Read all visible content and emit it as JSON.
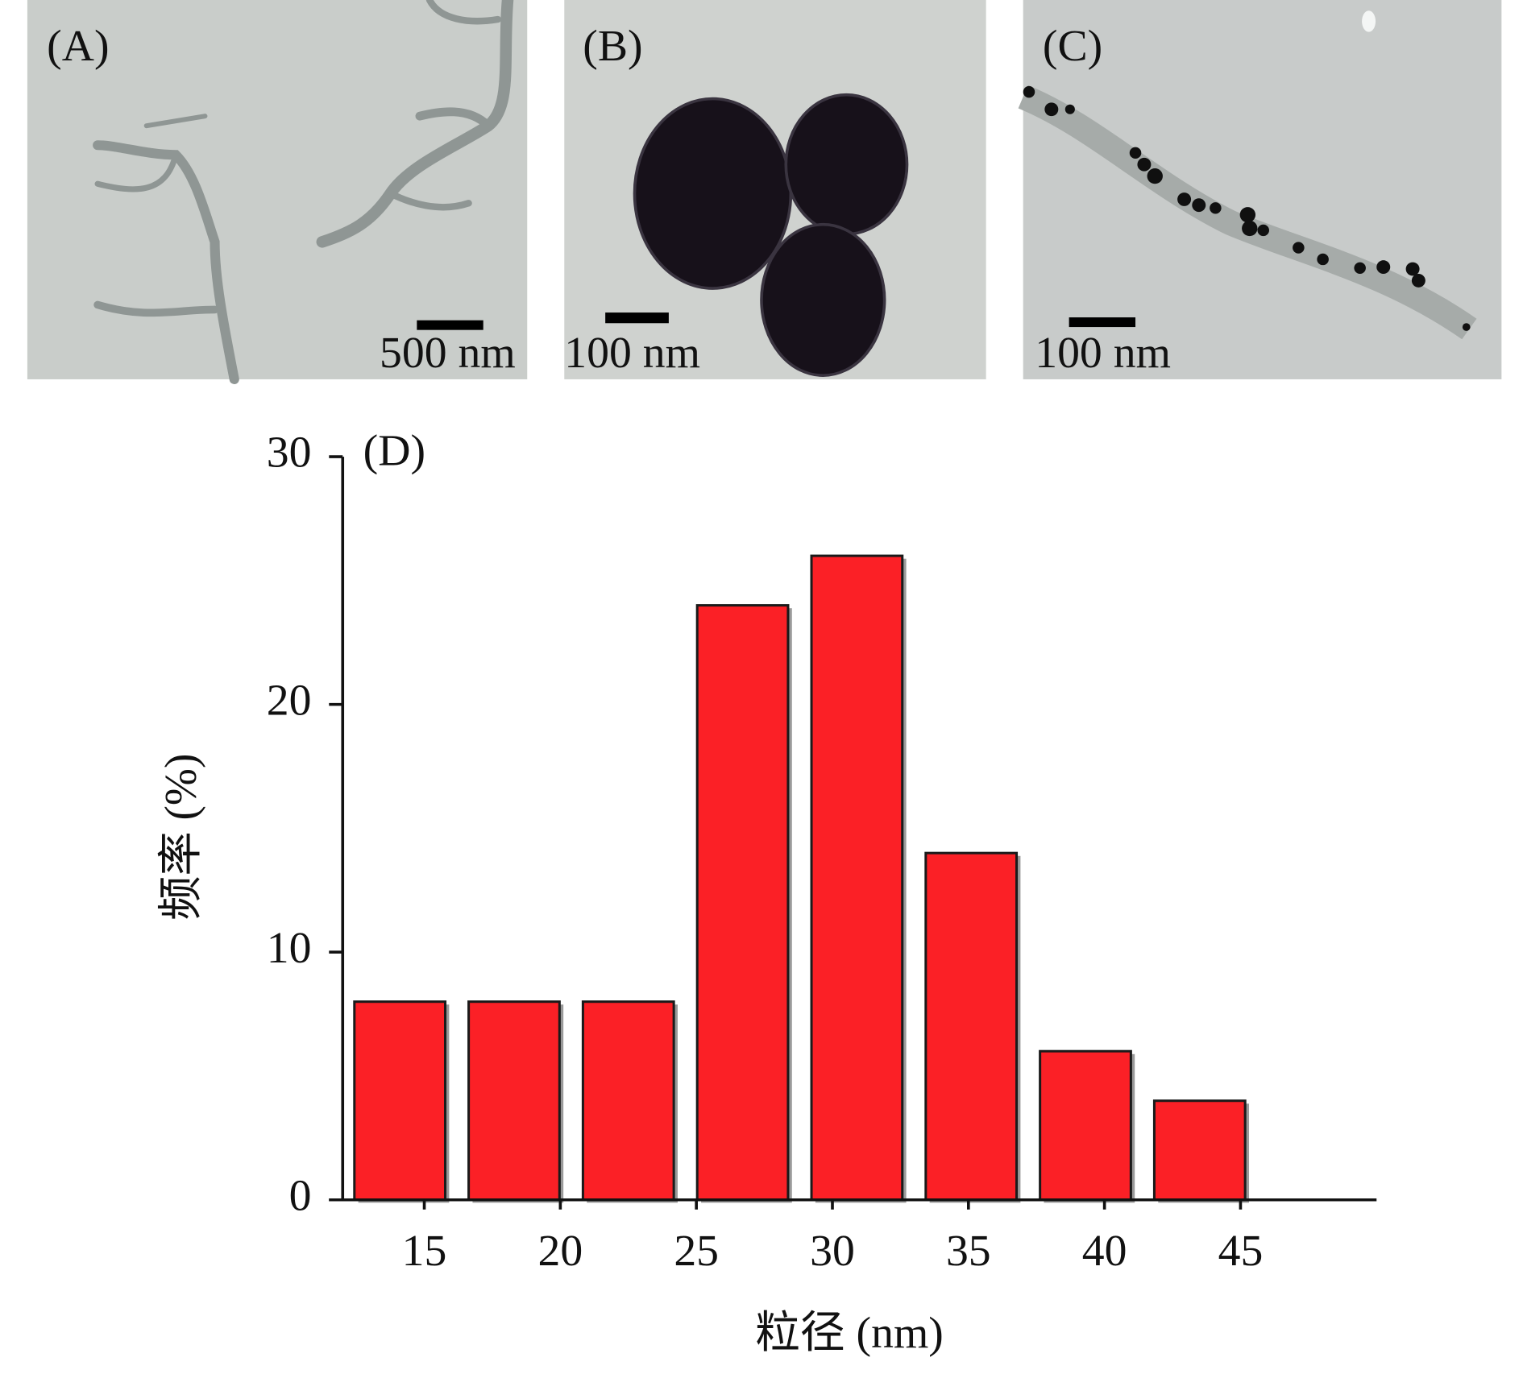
{
  "panels": [
    {
      "label": "(A)",
      "scale_bar": "500 nm"
    },
    {
      "label": "(B)",
      "scale_bar": "100 nm"
    },
    {
      "label": "(C)",
      "scale_bar": "100 nm"
    }
  ],
  "chart_data": {
    "type": "histogram",
    "panel_label": "(D)",
    "x_label": "粒径 (nm)",
    "y_label": "频率 (%)",
    "bins": [
      12,
      16.2,
      20.4,
      24.6,
      28.8,
      33,
      37.2,
      41.4,
      45.6
    ],
    "values": [
      8,
      8,
      8,
      24,
      26,
      14,
      6,
      4
    ],
    "color": "#fb2026",
    "xlim": [
      12,
      50
    ],
    "ylim": [
      0,
      30
    ],
    "xticks": [
      15,
      20,
      25,
      30,
      35,
      40,
      45
    ],
    "yticks": [
      0,
      10,
      20,
      30
    ]
  }
}
